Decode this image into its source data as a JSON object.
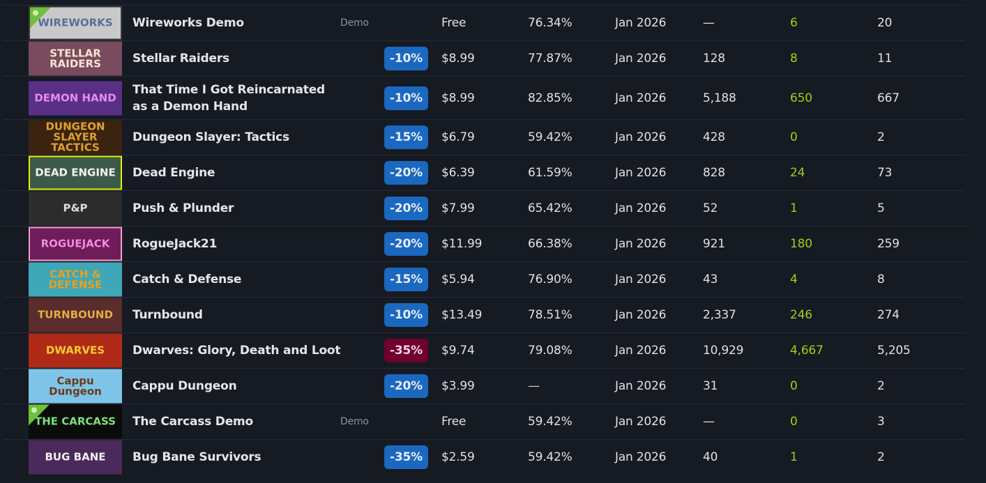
{
  "colors": {
    "background": "#161a22",
    "discount_blue": "#1a68bf",
    "discount_red": "#700030",
    "accent_green": "#a6cc1a"
  },
  "rows": [
    {
      "name": "Wireworks Demo",
      "type": "Demo",
      "discount": "",
      "price": "Free",
      "rating": "76.34%",
      "date": "Jan 2026",
      "col1": "—",
      "col2": "6",
      "col3": "20",
      "thumb": {
        "label": "WIREWORKS",
        "bg": "#c9c9c9",
        "fg": "#5a6d9a",
        "border": "#3a3a3a",
        "demo": true
      }
    },
    {
      "name": "Stellar Raiders",
      "type": "",
      "discount": "-10%",
      "discount_color": "blue",
      "price": "$8.99",
      "rating": "77.87%",
      "date": "Jan 2026",
      "col1": "128",
      "col2": "8",
      "col3": "11",
      "thumb": {
        "label": "STELLAR RAIDERS",
        "bg": "#7a4a5e",
        "fg": "#f5e6d0",
        "border": "",
        "demo": false
      }
    },
    {
      "name": "That Time I Got Reincarnated as a Demon Hand",
      "type": "",
      "discount": "-10%",
      "discount_color": "blue",
      "price": "$8.99",
      "rating": "82.85%",
      "date": "Jan 2026",
      "col1": "5,188",
      "col2": "650",
      "col3": "667",
      "thumb": {
        "label": "DEMON HAND",
        "bg": "#5a2f86",
        "fg": "#e58cf0",
        "border": "",
        "demo": false
      }
    },
    {
      "name": "Dungeon Slayer: Tactics",
      "type": "",
      "discount": "-15%",
      "discount_color": "blue",
      "price": "$6.79",
      "rating": "59.42%",
      "date": "Jan 2026",
      "col1": "428",
      "col2": "0",
      "col3": "2",
      "thumb": {
        "label": "DUNGEON SLAYER TACTICS",
        "bg": "#3a2410",
        "fg": "#e0a030",
        "border": "",
        "demo": false
      }
    },
    {
      "name": "Dead Engine",
      "type": "",
      "discount": "-20%",
      "discount_color": "blue",
      "price": "$6.39",
      "rating": "61.59%",
      "date": "Jan 2026",
      "col1": "828",
      "col2": "24",
      "col3": "73",
      "thumb": {
        "label": "DEAD ENGINE",
        "bg": "#3c5a4a",
        "fg": "#f2f2f2",
        "border": "#e6f000",
        "demo": false
      }
    },
    {
      "name": "Push & Plunder",
      "type": "",
      "discount": "-20%",
      "discount_color": "blue",
      "price": "$7.99",
      "rating": "65.42%",
      "date": "Jan 2026",
      "col1": "52",
      "col2": "1",
      "col3": "5",
      "thumb": {
        "label": "P&P",
        "bg": "#2c2c2c",
        "fg": "#dcdcdc",
        "border": "",
        "demo": false
      }
    },
    {
      "name": "RogueJack21",
      "type": "",
      "discount": "-20%",
      "discount_color": "blue",
      "price": "$11.99",
      "rating": "66.38%",
      "date": "Jan 2026",
      "col1": "921",
      "col2": "180",
      "col3": "259",
      "thumb": {
        "label": "ROGUEJACK",
        "bg": "#6e1c5a",
        "fg": "#f08ce0",
        "border": "#f0a0d0",
        "demo": false
      }
    },
    {
      "name": "Catch & Defense",
      "type": "",
      "discount": "-15%",
      "discount_color": "blue",
      "price": "$5.94",
      "rating": "76.90%",
      "date": "Jan 2026",
      "col1": "43",
      "col2": "4",
      "col3": "8",
      "thumb": {
        "label": "CATCH & DEFENSE",
        "bg": "#3fa8b8",
        "fg": "#e8a020",
        "border": "",
        "demo": false
      }
    },
    {
      "name": "Turnbound",
      "type": "",
      "discount": "-10%",
      "discount_color": "blue",
      "price": "$13.49",
      "rating": "78.51%",
      "date": "Jan 2026",
      "col1": "2,337",
      "col2": "246",
      "col3": "274",
      "thumb": {
        "label": "TURNBOUND",
        "bg": "#5a2c2c",
        "fg": "#e0b040",
        "border": "",
        "demo": false
      }
    },
    {
      "name": "Dwarves: Glory, Death and Loot",
      "type": "",
      "discount": "-35%",
      "discount_color": "red",
      "price": "$9.74",
      "rating": "79.08%",
      "date": "Jan 2026",
      "col1": "10,929",
      "col2": "4,667",
      "col3": "5,205",
      "thumb": {
        "label": "DWARVES",
        "bg": "#b02a18",
        "fg": "#f5cc30",
        "border": "",
        "demo": false
      }
    },
    {
      "name": "Cappu Dungeon",
      "type": "",
      "discount": "-20%",
      "discount_color": "blue",
      "price": "$3.99",
      "rating": "—",
      "date": "Jan 2026",
      "col1": "31",
      "col2": "0",
      "col3": "2",
      "thumb": {
        "label": "Cappu Dungeon",
        "bg": "#7ec4e8",
        "fg": "#6a3a1a",
        "border": "",
        "demo": false
      }
    },
    {
      "name": "The Carcass Demo",
      "type": "Demo",
      "discount": "",
      "price": "Free",
      "rating": "59.42%",
      "date": "Jan 2026",
      "col1": "—",
      "col2": "0",
      "col3": "3",
      "thumb": {
        "label": "THE CARCASS",
        "bg": "#0a0c0a",
        "fg": "#7ee07a",
        "border": "",
        "demo": true
      }
    },
    {
      "name": "Bug Bane Survivors",
      "type": "",
      "discount": "-35%",
      "discount_color": "blue",
      "price": "$2.59",
      "rating": "59.42%",
      "date": "Jan 2026",
      "col1": "40",
      "col2": "1",
      "col3": "2",
      "thumb": {
        "label": "BUG BANE",
        "bg": "#4a2a5a",
        "fg": "#f0f0f0",
        "border": "",
        "demo": false
      }
    }
  ]
}
